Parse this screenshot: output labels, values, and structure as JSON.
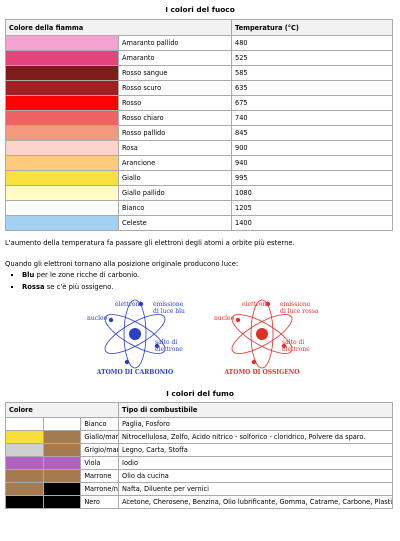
{
  "fire": {
    "title": "I colori del fuoco",
    "headers": [
      "Colore della fiamma",
      "Temperatura (°C)"
    ],
    "rows": [
      {
        "color": "#f2a3d2",
        "name": "Amaranto pallido",
        "temperature": 480
      },
      {
        "color": "#e2457c",
        "name": "Amaranto",
        "temperature": 525
      },
      {
        "color": "#7e1c1c",
        "name": "Rosso sangue",
        "temperature": 585
      },
      {
        "color": "#a31f24",
        "name": "Rosso scuro",
        "temperature": 635
      },
      {
        "color": "#ff0000",
        "name": "Rosso",
        "temperature": 675
      },
      {
        "color": "#ef6262",
        "name": "Rosso chiaro",
        "temperature": 740
      },
      {
        "color": "#f29a7c",
        "name": "Rosso pallido",
        "temperature": 845
      },
      {
        "color": "#fbd3cb",
        "name": "Rosa",
        "temperature": 900
      },
      {
        "color": "#ffcb7b",
        "name": "Arancione",
        "temperature": 940
      },
      {
        "color": "#f6e13f",
        "name": "Giallo",
        "temperature": 995
      },
      {
        "color": "#fffbc2",
        "name": "Giallo pallido",
        "temperature": 1080
      },
      {
        "color": "#ffffff",
        "name": "Bianco",
        "temperature": 1205
      },
      {
        "color": "#a3d1f2",
        "name": "Celeste",
        "temperature": 1400
      }
    ]
  },
  "text": {
    "paragraph": "L'aumento della temperatura fa passare gli elettroni degli atomi a orbite più esterne.",
    "intro": "Quando gli elettroni tornano alla posizione originale producono luce:",
    "bullets": [
      {
        "bold": "Blu",
        "text": " per le zone ricche di carbonio."
      },
      {
        "bold": "Rossa",
        "text": " se c'è più ossigeno."
      }
    ]
  },
  "diagram": {
    "carbon": {
      "color": "#2a3fc8",
      "electrons": "elettroni",
      "emission": [
        "emissione",
        "di luce blu"
      ],
      "nucleus": "nucleo",
      "jump": [
        "salto di",
        "elettrone"
      ],
      "caption": "ATOMO DI CARBONIO"
    },
    "oxygen": {
      "color": "#e0302a",
      "electrons": "elettroni",
      "emission": [
        "emissione",
        "di luce rossa"
      ],
      "nucleus": "nucleo",
      "jump": [
        "salto di",
        "elettrone"
      ],
      "caption": "ATOMO DI OSSIGENO"
    }
  },
  "smoke": {
    "title": "I colori del fumo",
    "headers": [
      "Colore",
      "Tipo di combustibile"
    ],
    "rows": [
      {
        "colors": [
          "#ffffff",
          "#ffffff"
        ],
        "name": "Bianco",
        "fuels": "Paglia, Fosforo"
      },
      {
        "colors": [
          "#f5df3a",
          "#a47a4e"
        ],
        "name": "Giallo/marrone",
        "fuels": "Nitrocellulosa, Zolfo, Acido nitrico - solforico - cloridrico, Polvere da sparo."
      },
      {
        "colors": [
          "#cfcfcf",
          "#a47a4e"
        ],
        "name": "Grigio/marrone",
        "fuels": "Legno, Carta, Stoffa"
      },
      {
        "colors": [
          "#b062c2",
          "#b062c2"
        ],
        "name": "Viola",
        "fuels": "Iodio"
      },
      {
        "colors": [
          "#a47a4e",
          "#a47a4e"
        ],
        "name": "Marrone",
        "fuels": "Olio da cucina"
      },
      {
        "colors": [
          "#a47a4e",
          "#000000"
        ],
        "name": "Marrone/nero",
        "fuels": "Nafta, Diluente per vernici"
      },
      {
        "colors": [
          "#000000",
          "#000000"
        ],
        "name": "Nero",
        "fuels": "Acetone, Cherosene, Benzina, Olio lubrificante, Gomma, Catrame, Carbone, Plastica"
      }
    ]
  }
}
